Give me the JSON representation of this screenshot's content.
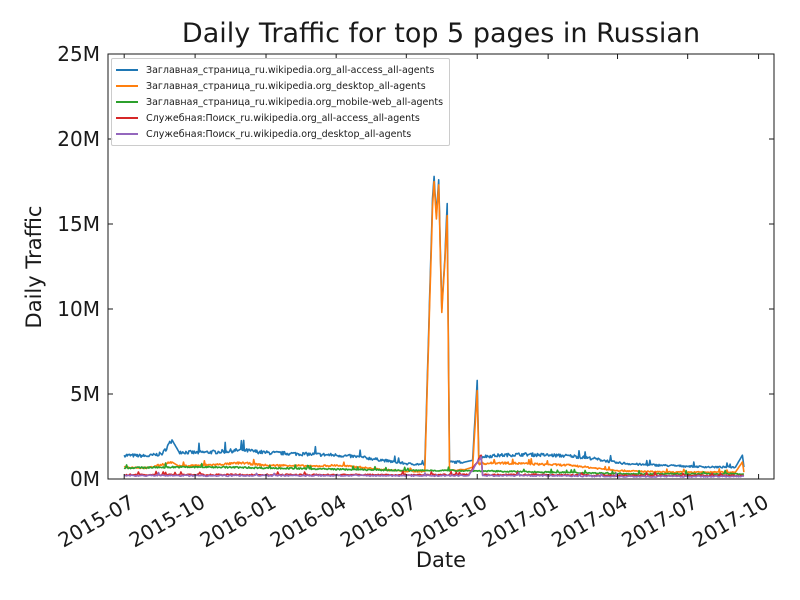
{
  "chart_data": {
    "type": "line",
    "title": "Daily Traffic for top 5 pages in Russian",
    "xlabel": "Date",
    "ylabel": "Daily Traffic",
    "xlim": [
      "2015-06-10",
      "2017-10-21"
    ],
    "ylim": [
      0,
      25000000
    ],
    "x_ticks": [
      "2015-07",
      "2015-10",
      "2016-01",
      "2016-04",
      "2016-07",
      "2016-10",
      "2017-01",
      "2017-04",
      "2017-07",
      "2017-10"
    ],
    "y_ticks": [
      {
        "value": 0,
        "label": "0M"
      },
      {
        "value": 5000000,
        "label": "5M"
      },
      {
        "value": 10000000,
        "label": "10M"
      },
      {
        "value": 15000000,
        "label": "15M"
      },
      {
        "value": 20000000,
        "label": "20M"
      },
      {
        "value": 25000000,
        "label": "25M"
      }
    ],
    "grid": false,
    "legend_position": "top-left",
    "series": [
      {
        "name": "Заглавная_страница_ru.wikipedia.org_all-access_all-agents",
        "color": "#1f77b4",
        "points": [
          [
            "2015-07-01",
            1400000
          ],
          [
            "2015-08-01",
            1350000
          ],
          [
            "2015-08-20",
            1500000
          ],
          [
            "2015-09-01",
            2300000
          ],
          [
            "2015-09-10",
            1600000
          ],
          [
            "2015-10-01",
            1550000
          ],
          [
            "2015-11-01",
            1600000
          ],
          [
            "2015-12-01",
            1700000
          ],
          [
            "2016-01-01",
            1550000
          ],
          [
            "2016-02-01",
            1500000
          ],
          [
            "2016-03-01",
            1450000
          ],
          [
            "2016-04-01",
            1400000
          ],
          [
            "2016-05-01",
            1300000
          ],
          [
            "2016-06-01",
            1100000
          ],
          [
            "2016-07-01",
            900000
          ],
          [
            "2016-07-25",
            850000
          ],
          [
            "2016-08-04",
            16500000
          ],
          [
            "2016-08-06",
            17800000
          ],
          [
            "2016-08-09",
            15500000
          ],
          [
            "2016-08-12",
            17600000
          ],
          [
            "2016-08-16",
            10000000
          ],
          [
            "2016-08-20",
            13000000
          ],
          [
            "2016-08-23",
            16200000
          ],
          [
            "2016-08-26",
            1000000
          ],
          [
            "2016-09-15",
            1000000
          ],
          [
            "2016-09-25",
            1100000
          ],
          [
            "2016-10-01",
            5800000
          ],
          [
            "2016-10-03",
            1300000
          ],
          [
            "2016-11-01",
            1400000
          ],
          [
            "2016-12-01",
            1450000
          ],
          [
            "2017-01-01",
            1400000
          ],
          [
            "2017-02-01",
            1350000
          ],
          [
            "2017-03-01",
            1200000
          ],
          [
            "2017-04-01",
            950000
          ],
          [
            "2017-05-01",
            850000
          ],
          [
            "2017-06-01",
            800000
          ],
          [
            "2017-07-01",
            750000
          ],
          [
            "2017-08-01",
            700000
          ],
          [
            "2017-09-01",
            700000
          ],
          [
            "2017-09-10",
            1400000
          ],
          [
            "2017-09-12",
            700000
          ]
        ]
      },
      {
        "name": "Заглавная_страница_ru.wikipedia.org_desktop_all-agents",
        "color": "#ff7f0e",
        "points": [
          [
            "2015-07-01",
            700000
          ],
          [
            "2015-08-01",
            650000
          ],
          [
            "2015-09-01",
            1000000
          ],
          [
            "2015-09-10",
            750000
          ],
          [
            "2015-10-01",
            800000
          ],
          [
            "2015-11-01",
            850000
          ],
          [
            "2015-12-01",
            950000
          ],
          [
            "2016-01-01",
            800000
          ],
          [
            "2016-02-01",
            800000
          ],
          [
            "2016-03-01",
            750000
          ],
          [
            "2016-04-01",
            800000
          ],
          [
            "2016-05-01",
            700000
          ],
          [
            "2016-06-01",
            550000
          ],
          [
            "2016-07-01",
            450000
          ],
          [
            "2016-07-25",
            450000
          ],
          [
            "2016-08-04",
            16000000
          ],
          [
            "2016-08-06",
            17500000
          ],
          [
            "2016-08-09",
            15300000
          ],
          [
            "2016-08-12",
            17300000
          ],
          [
            "2016-08-16",
            9800000
          ],
          [
            "2016-08-20",
            12800000
          ],
          [
            "2016-08-23",
            15500000
          ],
          [
            "2016-08-26",
            500000
          ],
          [
            "2016-09-15",
            550000
          ],
          [
            "2016-09-25",
            700000
          ],
          [
            "2016-10-01",
            5200000
          ],
          [
            "2016-10-03",
            900000
          ],
          [
            "2016-11-01",
            950000
          ],
          [
            "2016-12-01",
            900000
          ],
          [
            "2017-01-01",
            850000
          ],
          [
            "2017-02-01",
            800000
          ],
          [
            "2017-03-01",
            650000
          ],
          [
            "2017-04-01",
            500000
          ],
          [
            "2017-05-01",
            450000
          ],
          [
            "2017-06-01",
            400000
          ],
          [
            "2017-07-01",
            400000
          ],
          [
            "2017-08-01",
            400000
          ],
          [
            "2017-09-01",
            400000
          ],
          [
            "2017-09-10",
            1000000
          ],
          [
            "2017-09-12",
            400000
          ]
        ]
      },
      {
        "name": "Заглавная_страница_ru.wikipedia.org_mobile-web_all-agents",
        "color": "#2ca02c",
        "points": [
          [
            "2015-07-01",
            650000
          ],
          [
            "2015-09-01",
            700000
          ],
          [
            "2015-11-01",
            700000
          ],
          [
            "2016-01-01",
            650000
          ],
          [
            "2016-03-01",
            600000
          ],
          [
            "2016-05-01",
            550000
          ],
          [
            "2016-07-01",
            500000
          ],
          [
            "2016-09-01",
            500000
          ],
          [
            "2016-11-01",
            450000
          ],
          [
            "2017-01-01",
            400000
          ],
          [
            "2017-03-01",
            350000
          ],
          [
            "2017-05-01",
            300000
          ],
          [
            "2017-07-01",
            300000
          ],
          [
            "2017-09-12",
            300000
          ]
        ]
      },
      {
        "name": "Служебная:Поиск_ru.wikipedia.org_all-access_all-agents",
        "color": "#d62728",
        "points": [
          [
            "2015-07-01",
            250000
          ],
          [
            "2015-10-01",
            250000
          ],
          [
            "2016-01-01",
            250000
          ],
          [
            "2016-04-01",
            250000
          ],
          [
            "2016-07-01",
            250000
          ],
          [
            "2016-09-20",
            250000
          ],
          [
            "2016-10-06",
            1400000
          ],
          [
            "2016-10-08",
            250000
          ],
          [
            "2017-01-01",
            250000
          ],
          [
            "2017-04-01",
            200000
          ],
          [
            "2017-07-01",
            200000
          ],
          [
            "2017-09-12",
            200000
          ]
        ]
      },
      {
        "name": "Служебная:Поиск_ru.wikipedia.org_desktop_all-agents",
        "color": "#9467bd",
        "points": [
          [
            "2015-07-01",
            200000
          ],
          [
            "2015-10-01",
            200000
          ],
          [
            "2016-01-01",
            200000
          ],
          [
            "2016-04-01",
            200000
          ],
          [
            "2016-07-01",
            200000
          ],
          [
            "2016-09-20",
            200000
          ],
          [
            "2016-10-06",
            1300000
          ],
          [
            "2016-10-08",
            200000
          ],
          [
            "2017-01-01",
            200000
          ],
          [
            "2017-04-01",
            150000
          ],
          [
            "2017-07-01",
            150000
          ],
          [
            "2017-09-12",
            150000
          ]
        ]
      }
    ]
  }
}
